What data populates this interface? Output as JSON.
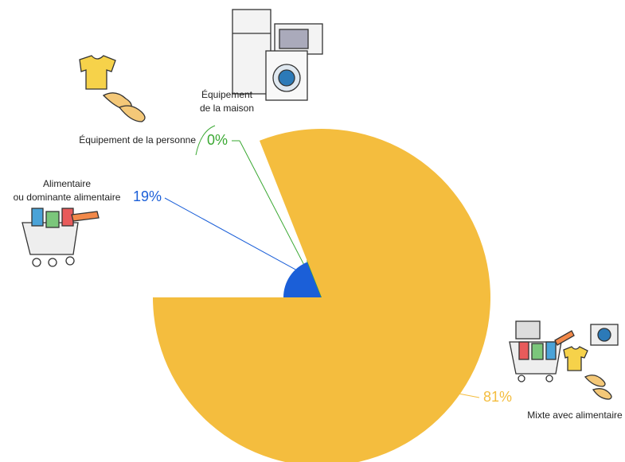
{
  "chart_data": {
    "type": "pie",
    "categories": [
      [
        "Alimentaire",
        "ou dominante alimentaire"
      ],
      [
        "Équipement de la personne"
      ],
      [
        "Équipement",
        "de la maison"
      ],
      [
        "Mixte avec alimentaire"
      ]
    ],
    "values": [
      19,
      0,
      0,
      81
    ],
    "value_labels": [
      "19%",
      "0%",
      null,
      "81%"
    ],
    "colors": [
      "#1b5fd8",
      "#3aa832",
      "#3aa832",
      "#f4bd3e"
    ],
    "start_angle": 270
  }
}
